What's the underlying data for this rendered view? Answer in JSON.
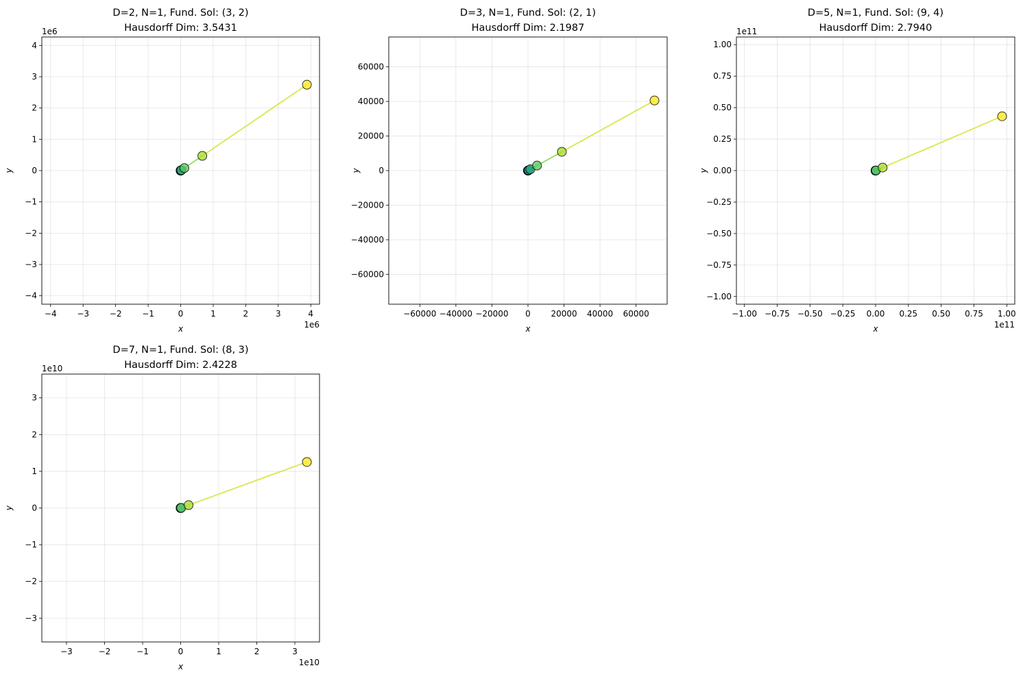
{
  "chart_data": [
    {
      "type": "line",
      "title": "D=2, N=1, Fund. Sol: (3, 2)",
      "subtitle": "Hausdorff Dim: 3.5431",
      "xlabel": "x",
      "ylabel": "y",
      "scale_label": "1e6",
      "scale": 1000000,
      "xlim": [
        -4268989,
        4268989
      ],
      "ylim": [
        -4268989,
        4268989
      ],
      "ticks": [
        -4,
        -3,
        -2,
        -1,
        0,
        1,
        2,
        3,
        4
      ],
      "tick_labels": [
        "−4",
        "−3",
        "−2",
        "−1",
        "0",
        "1",
        "2",
        "3",
        "4"
      ],
      "grid": true,
      "x": [
        3,
        17,
        99,
        577,
        3363,
        19601,
        114243,
        665857,
        3880899
      ],
      "y": [
        2,
        12,
        70,
        408,
        2378,
        13860,
        80782,
        470832,
        2744210
      ]
    },
    {
      "type": "line",
      "title": "D=3, N=1, Fund. Sol: (2, 1)",
      "subtitle": "Hausdorff Dim: 2.1987",
      "xlabel": "x",
      "ylabel": "y",
      "scale_label": "",
      "scale": 1,
      "xlim": [
        -77249,
        77249
      ],
      "ylim": [
        -77249,
        77249
      ],
      "ticks": [
        -60000,
        -40000,
        -20000,
        0,
        20000,
        40000,
        60000
      ],
      "tick_labels": [
        "−60000",
        "−40000",
        "−20000",
        "0",
        "20000",
        "40000",
        "60000"
      ],
      "grid": true,
      "x": [
        2,
        7,
        26,
        97,
        362,
        1351,
        5042,
        18817,
        70226
      ],
      "y": [
        1,
        4,
        15,
        56,
        209,
        780,
        2911,
        10864,
        40545
      ]
    },
    {
      "type": "line",
      "title": "D=5, N=1, Fund. Sol: (9, 4)",
      "subtitle": "Hausdorff Dim: 2.7940",
      "xlabel": "x",
      "ylabel": "y",
      "scale_label": "1e11",
      "scale": 100000000000,
      "xlim": [
        -106095084490,
        106095084490
      ],
      "ylim": [
        -106095084490,
        106095084490
      ],
      "ticks": [
        -1.0,
        -0.75,
        -0.5,
        -0.25,
        0,
        0.25,
        0.5,
        0.75,
        1.0
      ],
      "tick_labels": [
        "−1.00",
        "−0.75",
        "−0.50",
        "−0.25",
        "0.00",
        "0.25",
        "0.50",
        "0.75",
        "1.00"
      ],
      "grid": true,
      "x": [
        9,
        161,
        2889,
        51841,
        930249,
        16692641,
        299537289,
        5374978561,
        96450076809
      ],
      "y": [
        4,
        72,
        1292,
        23184,
        416020,
        7465176,
        133957148,
        2403763488,
        43133785636
      ]
    },
    {
      "type": "line",
      "title": "D=7, N=1, Fund. Sol: (8, 3)",
      "subtitle": "Hausdorff Dim: 2.4228",
      "xlabel": "x",
      "ylabel": "y",
      "scale_label": "1e10",
      "scale": 10000000000,
      "xlim": [
        -36482460546,
        36482460546
      ],
      "ylim": [
        -36482460546,
        36482460546
      ],
      "ticks": [
        -3,
        -2,
        -1,
        0,
        1,
        2,
        3
      ],
      "tick_labels": [
        "−3",
        "−2",
        "−1",
        "0",
        "1",
        "2",
        "3"
      ],
      "grid": true,
      "x": [
        8,
        127,
        2024,
        32257,
        514088,
        8193151,
        130576328,
        2081028097,
        33165873224
      ],
      "y": [
        3,
        48,
        765,
        12192,
        194307,
        3096720,
        49353213,
        786554688,
        12535521795
      ]
    }
  ]
}
